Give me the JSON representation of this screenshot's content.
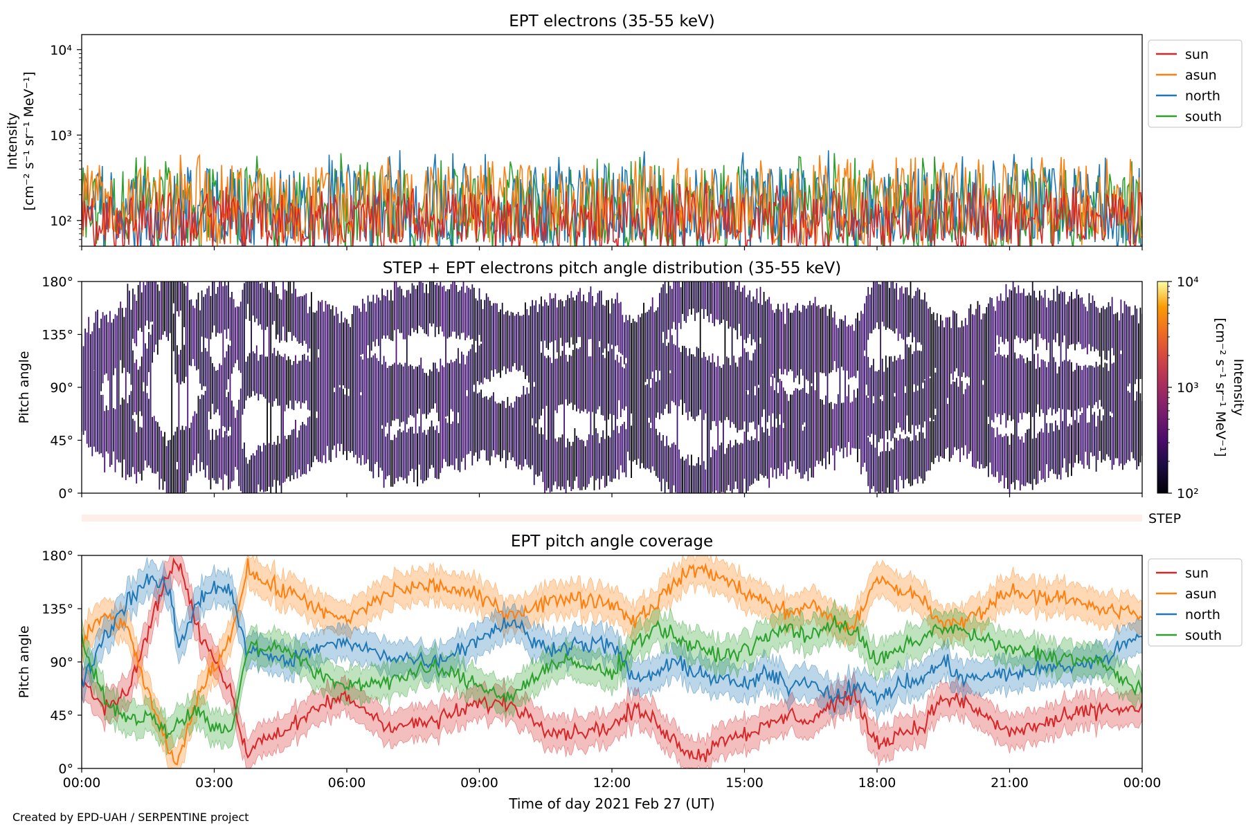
{
  "figure": {
    "credit": "Created by EPD-UAH / SERPENTINE project",
    "xlabel": "Time of day 2021 Feb 27 (UT)",
    "xtick_labels": [
      "00:00",
      "03:00",
      "06:00",
      "09:00",
      "12:00",
      "15:00",
      "18:00",
      "21:00",
      "00:00"
    ],
    "colors": {
      "sun": "#d62728",
      "asun": "#ff7f0e",
      "north": "#1f77b4",
      "south": "#2ca02c"
    }
  },
  "chart_data": [
    {
      "type": "line",
      "title": "EPT electrons (35-55 keV)",
      "ylabel_line1": "Intensity",
      "ylabel_line2": "[cm⁻² s⁻¹ sr⁻¹ MeV⁻¹]",
      "yscale": "log",
      "ylim": [
        50,
        15000
      ],
      "ytick_labels": [
        "10²",
        "10³",
        "10⁴"
      ],
      "ytick_values": [
        100,
        1000,
        10000
      ],
      "xlim_hours": [
        0,
        24
      ],
      "legend": [
        "sun",
        "asun",
        "north",
        "south"
      ],
      "legend_position": "outside-right-top",
      "series": [
        {
          "name": "south",
          "typical_range": [
            60,
            420
          ],
          "peak": 650
        },
        {
          "name": "north",
          "typical_range": [
            60,
            430
          ],
          "peak": 700
        },
        {
          "name": "asun",
          "typical_range": [
            70,
            450
          ],
          "peak": 600
        },
        {
          "name": "sun",
          "typical_range": [
            55,
            220
          ],
          "peak": 280
        }
      ]
    },
    {
      "type": "heatmap",
      "title": "STEP + EPT electrons pitch angle distribution (35-55 keV)",
      "ylabel": "Pitch angle",
      "ylim": [
        0,
        180
      ],
      "ytick_labels": [
        "0°",
        "45°",
        "90°",
        "135°",
        "180°"
      ],
      "ytick_values": [
        0,
        45,
        90,
        135,
        180
      ],
      "colorbar": {
        "label_line1": "Intensity",
        "label_line2": "[cm⁻² s⁻¹ sr⁻¹ MeV⁻¹]",
        "scale": "log",
        "range": [
          100,
          10000
        ],
        "tick_labels": [
          "10²",
          "10³",
          "10⁴"
        ],
        "colormap": "inferno"
      }
    },
    {
      "type": "bar",
      "label": "STEP"
    },
    {
      "type": "line",
      "title": "EPT pitch angle coverage",
      "ylabel": "Pitch angle",
      "ylim": [
        0,
        180
      ],
      "ytick_labels": [
        "0°",
        "45°",
        "90°",
        "135°",
        "180°"
      ],
      "ytick_values": [
        0,
        45,
        90,
        135,
        180
      ],
      "legend": [
        "sun",
        "asun",
        "north",
        "south"
      ],
      "legend_position": "outside-right-top",
      "series": [
        {
          "name": "sun",
          "hours": [
            0,
            0.5,
            1,
            1.5,
            2,
            2.2,
            2.6,
            3,
            3.4,
            3.75,
            4,
            4.5,
            5,
            5.5,
            6,
            7,
            8,
            9,
            9.7,
            10.5,
            11,
            12,
            12.5,
            13,
            13.5,
            14,
            14.5,
            15,
            15.5,
            16,
            16.5,
            17,
            17.5,
            18,
            18.5,
            19,
            19.5,
            20,
            21,
            22,
            23,
            24
          ],
          "values": [
            75,
            50,
            60,
            115,
            170,
            175,
            120,
            95,
            60,
            10,
            25,
            30,
            40,
            55,
            60,
            35,
            40,
            55,
            55,
            35,
            30,
            35,
            50,
            40,
            20,
            10,
            25,
            30,
            35,
            45,
            40,
            55,
            60,
            20,
            30,
            35,
            60,
            55,
            30,
            40,
            50,
            50
          ]
        },
        {
          "name": "asun",
          "hours": [
            0,
            0.5,
            1,
            1.5,
            2,
            2.2,
            2.6,
            3,
            3.4,
            3.75,
            4,
            4.5,
            5,
            5.5,
            6,
            7,
            8,
            9,
            9.7,
            10.5,
            11,
            12,
            12.5,
            13,
            13.5,
            14,
            14.5,
            15,
            15.5,
            16,
            16.5,
            17,
            17.5,
            18,
            18.5,
            19,
            19.5,
            20,
            21,
            22,
            23,
            24
          ],
          "values": [
            105,
            130,
            120,
            65,
            10,
            5,
            60,
            85,
            115,
            170,
            160,
            150,
            145,
            130,
            125,
            150,
            155,
            145,
            130,
            140,
            145,
            140,
            125,
            140,
            160,
            170,
            160,
            150,
            140,
            130,
            140,
            125,
            120,
            160,
            150,
            145,
            120,
            125,
            150,
            145,
            135,
            130
          ]
        },
        {
          "name": "north",
          "hours": [
            0,
            0.5,
            1,
            1.5,
            2,
            2.2,
            2.6,
            3,
            3.4,
            3.75,
            4,
            4.5,
            5,
            5.5,
            6,
            7,
            8,
            9,
            9.7,
            10.5,
            11,
            12,
            12.5,
            13,
            13.5,
            14,
            14.5,
            15,
            15.5,
            16,
            16.5,
            17,
            17.5,
            18,
            18.5,
            19,
            19.5,
            20,
            21,
            22,
            23,
            24
          ],
          "values": [
            70,
            110,
            140,
            160,
            150,
            100,
            140,
            155,
            150,
            95,
            100,
            90,
            95,
            105,
            105,
            95,
            90,
            110,
            125,
            100,
            105,
            105,
            75,
            80,
            90,
            80,
            75,
            70,
            80,
            70,
            75,
            60,
            70,
            60,
            70,
            75,
            90,
            75,
            80,
            85,
            90,
            115
          ]
        },
        {
          "name": "south",
          "hours": [
            0,
            0.5,
            1,
            1.5,
            2,
            2.2,
            2.6,
            3,
            3.4,
            3.75,
            4,
            4.5,
            5,
            5.5,
            6,
            7,
            8,
            9,
            9.7,
            10.5,
            11,
            12,
            12.5,
            13,
            13.5,
            14,
            14.5,
            15,
            15.5,
            16,
            16.5,
            17,
            17.5,
            18,
            18.5,
            19,
            19.5,
            20,
            21,
            22,
            23,
            24
          ],
          "values": [
            110,
            60,
            40,
            45,
            30,
            40,
            50,
            35,
            30,
            105,
            100,
            105,
            90,
            75,
            70,
            75,
            85,
            70,
            60,
            85,
            90,
            80,
            105,
            120,
            110,
            100,
            95,
            100,
            110,
            120,
            110,
            125,
            115,
            90,
            100,
            110,
            120,
            115,
            100,
            95,
            90,
            65
          ]
        }
      ]
    }
  ]
}
